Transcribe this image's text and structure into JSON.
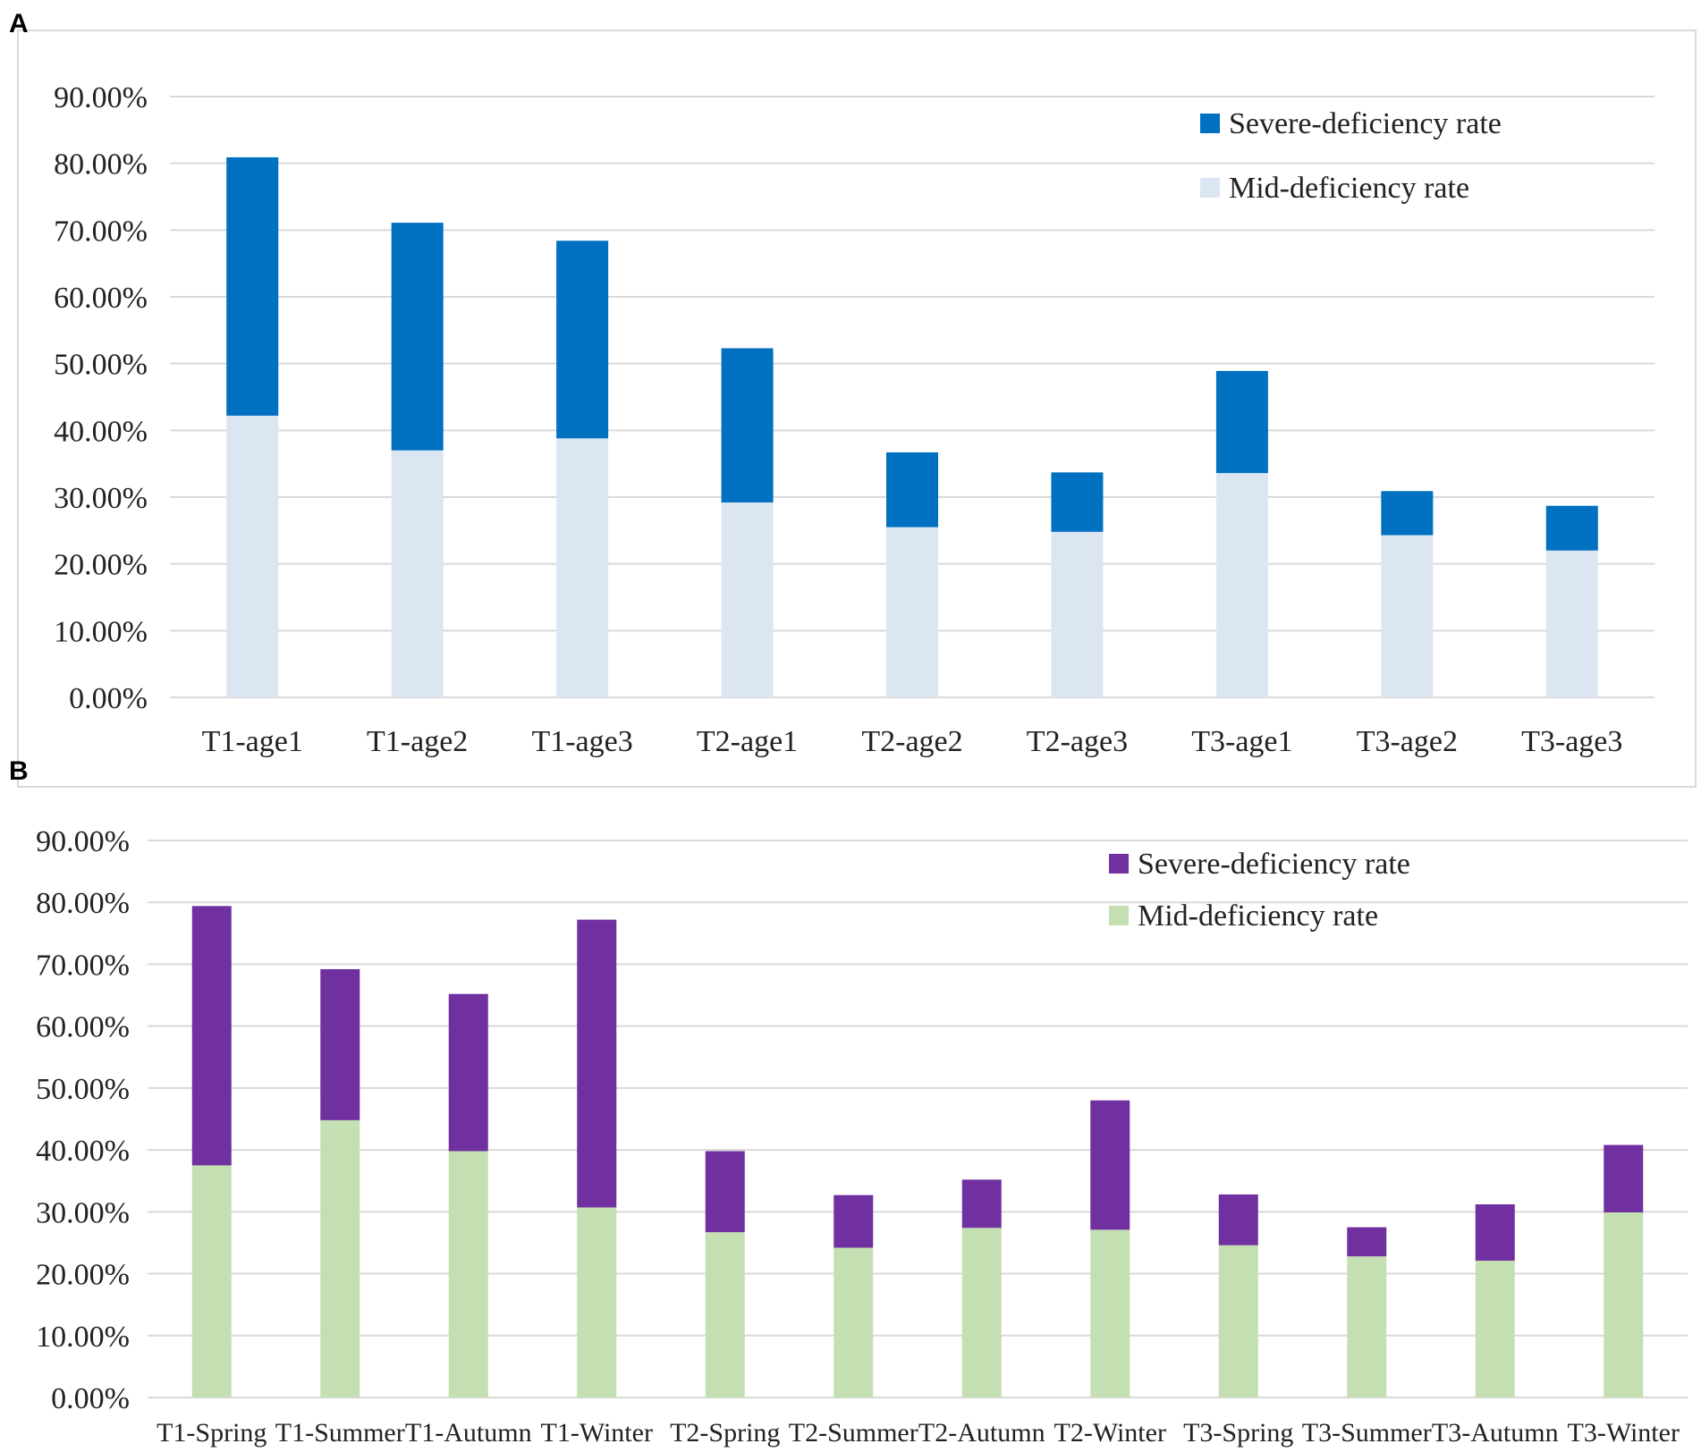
{
  "chart_data": [
    {
      "panel": "A",
      "type": "bar",
      "stacked": true,
      "categories": [
        "T1-age1",
        "T1-age2",
        "T1-age3",
        "T2-age1",
        "T2-age2",
        "T2-age3",
        "T3-age1",
        "T3-age2",
        "T3-age3"
      ],
      "series": [
        {
          "name": "Mid-deficiency rate",
          "color": "#dce6f2",
          "values": [
            42.2,
            37.0,
            38.8,
            29.2,
            25.5,
            24.8,
            33.6,
            24.3,
            22.0
          ]
        },
        {
          "name": "Severe-deficiency rate",
          "color": "#0070c0",
          "values": [
            38.7,
            34.1,
            29.6,
            23.1,
            11.2,
            8.9,
            15.3,
            6.6,
            6.7
          ]
        }
      ],
      "legend": [
        "Severe-deficiency rate",
        "Mid-deficiency rate"
      ],
      "legend_position": "top-right",
      "yticks": [
        "0.00%",
        "10.00%",
        "20.00%",
        "30.00%",
        "40.00%",
        "50.00%",
        "60.00%",
        "70.00%",
        "80.00%",
        "90.00%"
      ],
      "ylim": [
        0,
        90
      ],
      "grid": true,
      "title": "",
      "xlabel": "",
      "ylabel": ""
    },
    {
      "panel": "B",
      "type": "bar",
      "stacked": true,
      "categories": [
        "T1-Spring",
        "T1-Summer",
        "T1-Autumn",
        "T1-Winter",
        "T2-Spring",
        "T2-Summer",
        "T2-Autumn",
        "T2-Winter",
        "T3-Spring",
        "T3-Summer",
        "T3-Autumn",
        "T3-Winter"
      ],
      "series": [
        {
          "name": "Mid-deficiency rate",
          "color": "#c4dfb2",
          "values": [
            37.5,
            44.8,
            39.8,
            30.7,
            26.7,
            24.2,
            27.4,
            27.1,
            24.6,
            22.8,
            22.1,
            29.9
          ]
        },
        {
          "name": "Severe-deficiency rate",
          "color": "#7030a0",
          "values": [
            41.9,
            24.4,
            25.4,
            46.5,
            13.1,
            8.5,
            7.8,
            20.9,
            8.2,
            4.7,
            9.1,
            10.9
          ]
        }
      ],
      "legend": [
        "Severe-deficiency rate",
        "Mid-deficiency rate"
      ],
      "legend_position": "top-right",
      "yticks": [
        "0.00%",
        "10.00%",
        "20.00%",
        "30.00%",
        "40.00%",
        "50.00%",
        "60.00%",
        "70.00%",
        "80.00%",
        "90.00%"
      ],
      "ylim": [
        0,
        90
      ],
      "grid": true,
      "title": "",
      "xlabel": "",
      "ylabel": ""
    }
  ]
}
